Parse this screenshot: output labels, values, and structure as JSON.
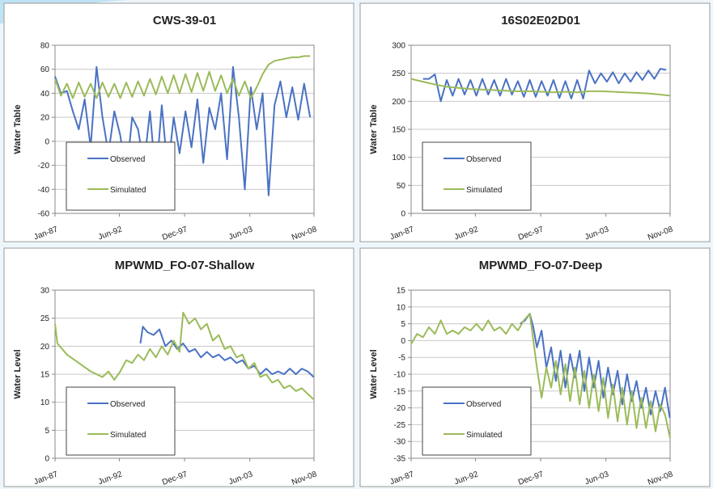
{
  "chart_data": [
    {
      "type": "line",
      "title": "CWS-39-01",
      "y_label": "Water Table",
      "legend": "lower left",
      "grid": true,
      "xlim": [
        1987.0,
        2008.83
      ],
      "ylim": [
        -60,
        80
      ],
      "yticks": [
        -60,
        -40,
        -20,
        0,
        20,
        40,
        60,
        80
      ],
      "xticks": [
        {
          "value": 1987.0,
          "label": "Jan-87"
        },
        {
          "value": 1992.42,
          "label": "Jun-92"
        },
        {
          "value": 1997.92,
          "label": "Dec-97"
        },
        {
          "value": 2003.42,
          "label": "Jun-03"
        },
        {
          "value": 2008.83,
          "label": "Nov-08"
        }
      ],
      "series": [
        {
          "name": "Observed",
          "color": "#4a72c4",
          "x": [
            1987,
            1987.5,
            1988,
            1988.5,
            1989,
            1989.5,
            1990,
            1990.5,
            1991,
            1991.5,
            1992,
            1992.5,
            1993,
            1993.5,
            1994,
            1994.5,
            1995,
            1995.5,
            1996,
            1996.5,
            1997,
            1997.5,
            1998,
            1998.5,
            1999,
            1999.5,
            2000,
            2000.5,
            2001,
            2001.5,
            2002,
            2002.5,
            2003,
            2003.5,
            2004,
            2004.5,
            2005,
            2005.5,
            2006,
            2006.5,
            2007,
            2007.5,
            2008,
            2008.5
          ],
          "values": [
            54,
            40,
            42,
            25,
            10,
            35,
            -5,
            62,
            20,
            -10,
            25,
            5,
            -30,
            20,
            10,
            -20,
            25,
            -32,
            30,
            -25,
            20,
            -10,
            25,
            -5,
            35,
            -18,
            28,
            10,
            40,
            -15,
            62,
            20,
            -40,
            45,
            10,
            40,
            -45,
            30,
            50,
            20,
            45,
            18,
            48,
            20
          ]
        },
        {
          "name": "Simulated",
          "color": "#9bbb59",
          "x": [
            1987,
            1987.5,
            1988,
            1988.5,
            1989,
            1989.5,
            1990,
            1990.5,
            1991,
            1991.5,
            1992,
            1992.5,
            1993,
            1993.5,
            1994,
            1994.5,
            1995,
            1995.5,
            1996,
            1996.5,
            1997,
            1997.5,
            1998,
            1998.5,
            1999,
            1999.5,
            2000,
            2000.5,
            2001,
            2001.5,
            2002,
            2002.5,
            2003,
            2003.5,
            2004,
            2004.5,
            2005,
            2005.5,
            2006,
            2006.5,
            2007,
            2007.5,
            2008,
            2008.5
          ],
          "values": [
            52,
            38,
            48,
            36,
            49,
            37,
            48,
            36,
            49,
            37,
            48,
            36,
            49,
            37,
            50,
            38,
            52,
            39,
            54,
            40,
            55,
            40,
            56,
            41,
            57,
            42,
            58,
            42,
            55,
            40,
            52,
            38,
            50,
            36,
            45,
            56,
            64,
            67,
            68,
            69,
            70,
            70,
            71,
            71
          ]
        }
      ]
    },
    {
      "type": "line",
      "title": "16S02E02D01",
      "y_label": "Water Table",
      "legend": "lower left",
      "grid": true,
      "xlim": [
        1987.0,
        2008.83
      ],
      "ylim": [
        0,
        300
      ],
      "yticks": [
        0,
        50,
        100,
        150,
        200,
        250,
        300
      ],
      "xticks": [
        {
          "value": 1987.0,
          "label": "Jan-87"
        },
        {
          "value": 1992.42,
          "label": "Jun-92"
        },
        {
          "value": 1997.92,
          "label": "Dec-97"
        },
        {
          "value": 2003.42,
          "label": "Jun-03"
        },
        {
          "value": 2008.83,
          "label": "Nov-08"
        }
      ],
      "series": [
        {
          "name": "Observed",
          "color": "#4a72c4",
          "x": [
            1988,
            1988.5,
            1989,
            1989.5,
            1990,
            1990.5,
            1991,
            1991.5,
            1992,
            1992.5,
            1993,
            1993.5,
            1994,
            1994.5,
            1995,
            1995.5,
            1996,
            1996.5,
            1997,
            1997.5,
            1998,
            1998.5,
            1999,
            1999.5,
            2000,
            2000.5,
            2001,
            2001.5,
            2002,
            2002.5,
            2003,
            2003.5,
            2004,
            2004.5,
            2005,
            2005.5,
            2006,
            2006.5,
            2007,
            2007.5,
            2008,
            2008.5
          ],
          "values": [
            240,
            240,
            248,
            200,
            238,
            210,
            240,
            212,
            238,
            210,
            240,
            212,
            238,
            210,
            240,
            212,
            236,
            208,
            238,
            208,
            236,
            210,
            238,
            206,
            236,
            205,
            238,
            205,
            255,
            232,
            250,
            235,
            252,
            232,
            250,
            235,
            252,
            238,
            255,
            240,
            258,
            256
          ]
        },
        {
          "name": "Simulated",
          "color": "#9bbb59",
          "x": [
            1987,
            1988,
            1989,
            1990,
            1991,
            1992,
            1993,
            1994,
            1995,
            1996,
            1997,
            1998,
            1999,
            2000,
            2001,
            2002,
            2003,
            2004,
            2005,
            2006,
            2007,
            2008,
            2008.83
          ],
          "values": [
            240,
            235,
            230,
            226,
            224,
            222,
            221,
            220,
            219,
            218,
            218,
            217,
            216,
            217,
            216,
            218,
            218,
            217,
            216,
            215,
            214,
            212,
            210
          ]
        }
      ]
    },
    {
      "type": "line",
      "title": "MPWMD_FO-07-Shallow",
      "y_label": "Water Level",
      "legend": "lower left",
      "grid": true,
      "xlim": [
        1987.0,
        2008.83
      ],
      "ylim": [
        0,
        30
      ],
      "yticks": [
        0,
        5,
        10,
        15,
        20,
        25,
        30
      ],
      "xticks": [
        {
          "value": 1987.0,
          "label": "Jan-87"
        },
        {
          "value": 1992.42,
          "label": "Jun-92"
        },
        {
          "value": 1997.92,
          "label": "Dec-97"
        },
        {
          "value": 2003.42,
          "label": "Jun-03"
        },
        {
          "value": 2008.83,
          "label": "Nov-08"
        }
      ],
      "series": [
        {
          "name": "Observed",
          "color": "#4a72c4",
          "x": [
            1994.2,
            1994.4,
            1994.8,
            1995.3,
            1995.8,
            1996.3,
            1996.8,
            1997.3,
            1997.8,
            1998.3,
            1998.8,
            1999.3,
            1999.8,
            2000.3,
            2000.8,
            2001.3,
            2001.8,
            2002.3,
            2002.8,
            2003.3,
            2003.8,
            2004.3,
            2004.8,
            2005.3,
            2005.8,
            2006.3,
            2006.8,
            2007.3,
            2007.8,
            2008.3,
            2008.8
          ],
          "values": [
            20.5,
            23.5,
            22.5,
            22,
            23,
            20,
            21,
            19.5,
            20.5,
            19,
            19.5,
            18,
            19,
            18,
            18.5,
            17.5,
            18,
            17,
            17.5,
            16,
            16.5,
            15,
            16,
            15,
            15.5,
            15,
            16,
            15,
            16,
            15.5,
            14.5
          ]
        },
        {
          "name": "Simulated",
          "color": "#9bbb59",
          "x": [
            1987,
            1987.2,
            1988,
            1989,
            1990,
            1991,
            1991.5,
            1992,
            1992.5,
            1993,
            1993.5,
            1994,
            1994.5,
            1995,
            1995.5,
            1996,
            1996.5,
            1997,
            1997.5,
            1997.8,
            1998.3,
            1998.8,
            1999.3,
            1999.8,
            2000.3,
            2000.8,
            2001.3,
            2001.8,
            2002.3,
            2002.8,
            2003.3,
            2003.8,
            2004.3,
            2004.8,
            2005.3,
            2005.8,
            2006.3,
            2006.8,
            2007.3,
            2007.8,
            2008.3,
            2008.8
          ],
          "values": [
            24,
            20.5,
            18.5,
            17,
            15.5,
            14.5,
            15.5,
            14,
            15.5,
            17.5,
            17,
            18.5,
            17.5,
            19.5,
            18,
            20,
            18.5,
            21,
            19,
            26,
            24,
            25,
            23,
            24,
            21,
            22,
            19.5,
            20,
            18,
            18.5,
            16,
            17,
            14.5,
            15,
            13.5,
            14,
            12.5,
            13,
            12,
            12.5,
            11.5,
            10.5
          ]
        }
      ]
    },
    {
      "type": "line",
      "title": "MPWMD_FO-07-Deep",
      "y_label": "Water Level",
      "legend": "lower left",
      "grid": true,
      "xlim": [
        1987.0,
        2008.83
      ],
      "ylim": [
        -35,
        15
      ],
      "yticks": [
        -35,
        -30,
        -25,
        -20,
        -15,
        -10,
        -5,
        0,
        5,
        10,
        15
      ],
      "xticks": [
        {
          "value": 1987.0,
          "label": "Jan-87"
        },
        {
          "value": 1992.42,
          "label": "Jun-92"
        },
        {
          "value": 1997.92,
          "label": "Dec-97"
        },
        {
          "value": 2003.42,
          "label": "Jun-03"
        },
        {
          "value": 2008.83,
          "label": "Nov-08"
        }
      ],
      "series": [
        {
          "name": "Observed",
          "color": "#4a72c4",
          "x": [
            1996.2,
            1996.6,
            1997,
            1997.3,
            1997.6,
            1998,
            1998.4,
            1998.8,
            1999.2,
            1999.6,
            2000,
            2000.4,
            2000.8,
            2001.2,
            2001.6,
            2002,
            2002.4,
            2002.8,
            2003.2,
            2003.6,
            2004,
            2004.4,
            2004.8,
            2005.2,
            2005.6,
            2006,
            2006.4,
            2006.8,
            2007.2,
            2007.6,
            2008,
            2008.4,
            2008.8
          ],
          "values": [
            5,
            6,
            8,
            4,
            -2,
            3,
            -8,
            -2,
            -12,
            -3,
            -14,
            -4,
            -11,
            -3,
            -15,
            -5,
            -14,
            -6,
            -17,
            -8,
            -16,
            -9,
            -19,
            -10,
            -18,
            -12,
            -20,
            -14,
            -22,
            -15,
            -21,
            -14,
            -23
          ]
        },
        {
          "name": "Simulated",
          "color": "#9bbb59",
          "x": [
            1987,
            1987.5,
            1988,
            1988.5,
            1989,
            1989.5,
            1990,
            1990.5,
            1991,
            1991.5,
            1992,
            1992.5,
            1993,
            1993.5,
            1994,
            1994.5,
            1995,
            1995.5,
            1996,
            1996.5,
            1997,
            1997.3,
            1997.6,
            1998,
            1998.4,
            1998.8,
            1999.2,
            1999.6,
            2000,
            2000.4,
            2000.8,
            2001.2,
            2001.6,
            2002,
            2002.4,
            2002.8,
            2003.2,
            2003.6,
            2004,
            2004.4,
            2004.8,
            2005.2,
            2005.6,
            2006,
            2006.4,
            2006.8,
            2007.2,
            2007.6,
            2008,
            2008.4,
            2008.83
          ],
          "values": [
            -1,
            2,
            1,
            4,
            2,
            6,
            2,
            3,
            2,
            4,
            3,
            5,
            3,
            6,
            3,
            4,
            2,
            5,
            3,
            6,
            8,
            0,
            -8,
            -17,
            -8,
            -14,
            -6,
            -16,
            -7,
            -18,
            -8,
            -19,
            -9,
            -20,
            -10,
            -21,
            -11,
            -23,
            -13,
            -24,
            -14,
            -25,
            -15,
            -26,
            -17,
            -26,
            -18,
            -27,
            -19,
            -22,
            -29
          ]
        }
      ]
    }
  ]
}
